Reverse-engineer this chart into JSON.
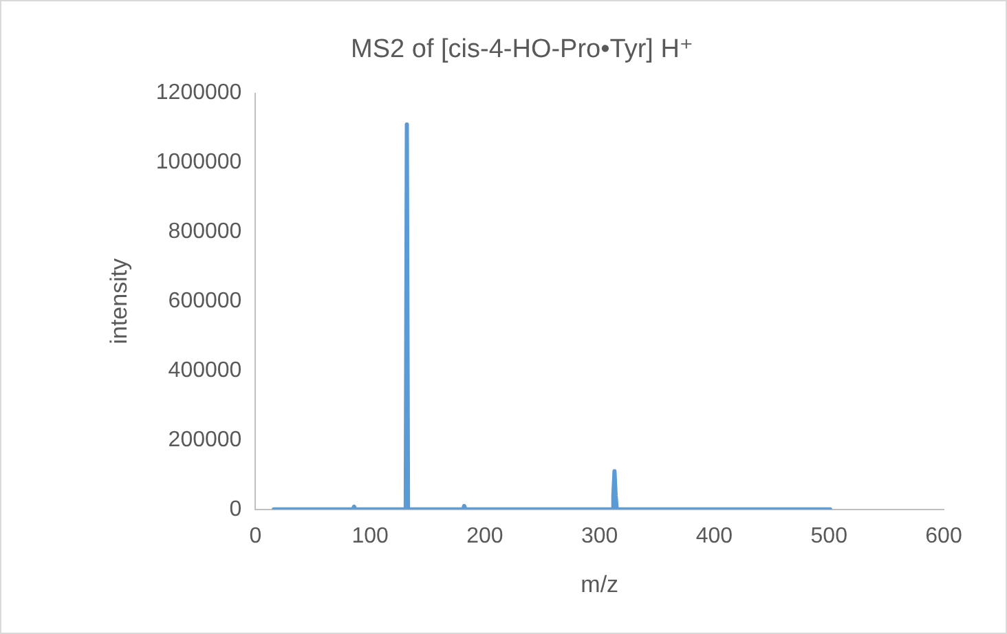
{
  "chart_data": {
    "type": "line",
    "title": "MS2 of [cis-4-HO-Pro•Tyr] H⁺",
    "xlabel": "m/z",
    "ylabel": "intensity",
    "x": [
      16,
      85,
      86,
      87,
      131,
      132,
      133,
      181,
      182,
      183,
      311,
      312,
      313,
      314,
      315,
      501
    ],
    "series": [
      {
        "color": "#5b9bd5",
        "values": [
          0,
          0,
          8000,
          0,
          0,
          1110000,
          0,
          0,
          10000,
          0,
          0,
          40000,
          110000,
          40000,
          0,
          0
        ]
      }
    ],
    "xlim": [
      0,
      600
    ],
    "xticks": [
      0,
      100,
      200,
      300,
      400,
      500,
      600
    ],
    "ylim": [
      0,
      1200000
    ],
    "yticks": [
      0,
      200000,
      400000,
      600000,
      800000,
      1000000,
      1200000
    ],
    "grid": false,
    "legend": false,
    "marker": "none",
    "line_style": "solid"
  }
}
